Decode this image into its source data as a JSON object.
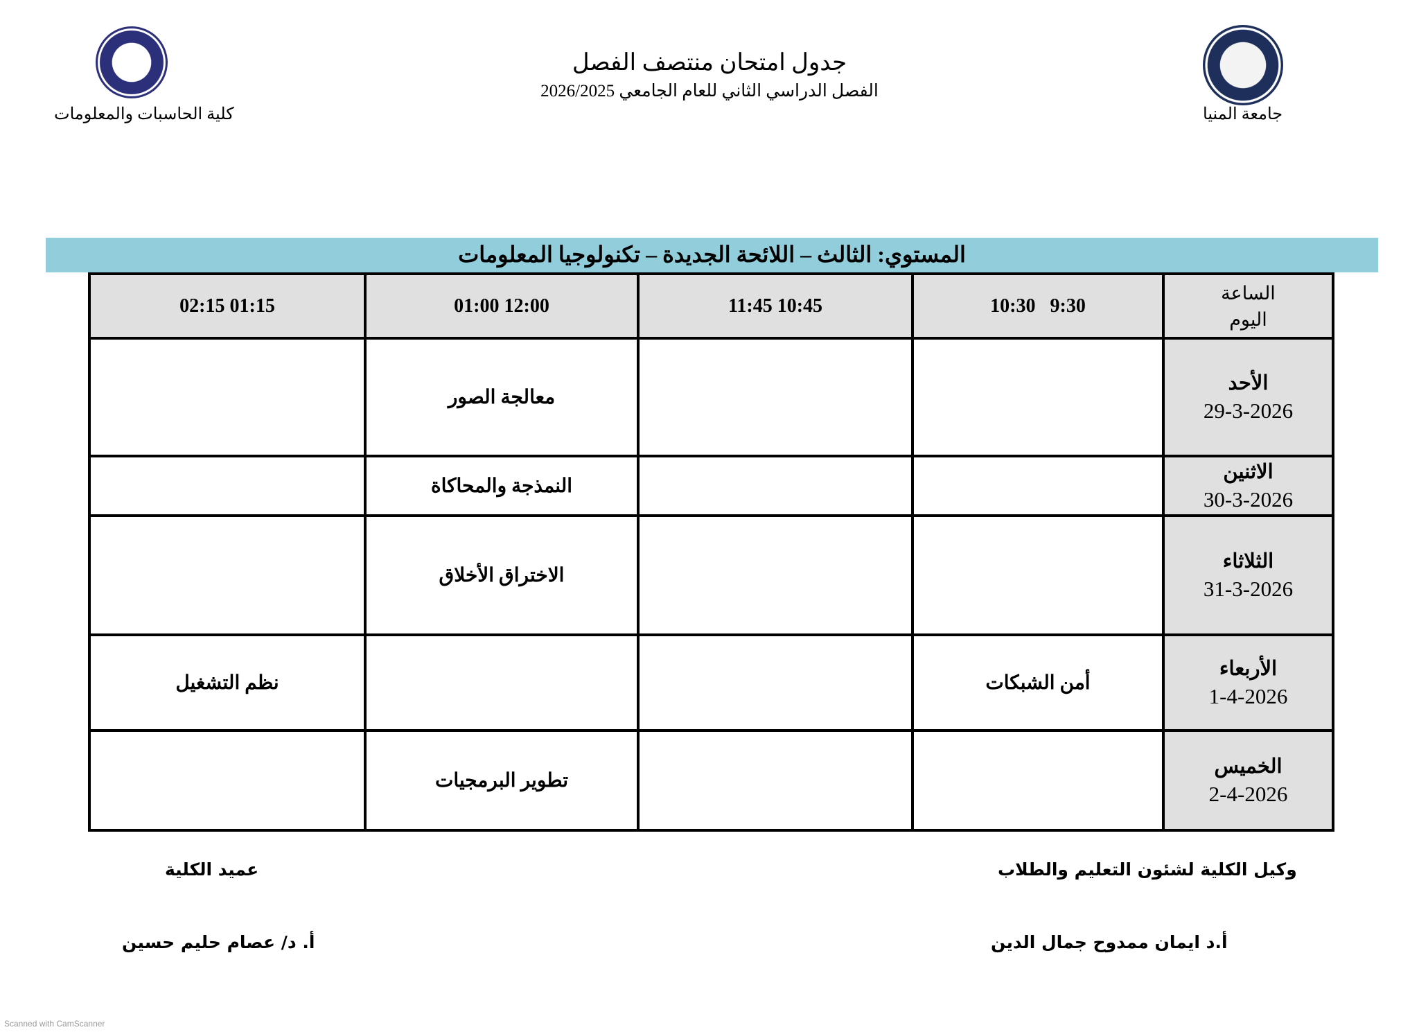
{
  "header": {
    "title": "جدول امتحان منتصف الفصل",
    "subtitle": "الفصل الدراسي الثاني للعام الجامعي 2026/2025",
    "left_institution": "كلية الحاسبات والمعلومات",
    "right_institution": "جامعة المنيا"
  },
  "banner": {
    "text": "المستوي: الثالث – اللائحة الجديدة – تكنولوجيا المعلومات",
    "color": "#92cddc"
  },
  "table": {
    "corner": [
      "الساعة",
      "اليوم"
    ],
    "time_slots": [
      "10:30   9:30",
      "11:45 10:45",
      "01:00 12:00",
      "02:15 01:15"
    ],
    "rows": [
      {
        "day": "الأحد",
        "date": "29-3-2026",
        "cells": [
          "",
          "",
          "معالجة الصور",
          ""
        ]
      },
      {
        "day": "الاثنين",
        "date": "30-3-2026",
        "cells": [
          "",
          "",
          "النمذجة والمحاكاة",
          ""
        ]
      },
      {
        "day": "الثلاثاء",
        "date": "31-3-2026",
        "cells": [
          "",
          "",
          "الاختراق الأخلاق",
          ""
        ]
      },
      {
        "day": "الأربعاء",
        "date": "1-4-2026",
        "cells": [
          "أمن الشبكات",
          "",
          "",
          "نظم التشغيل"
        ]
      },
      {
        "day": "الخميس",
        "date": "2-4-2026",
        "cells": [
          "",
          "",
          "تطوير البرمجيات",
          ""
        ]
      }
    ]
  },
  "signatures": {
    "right_role": "وكيل الكلية لشئون التعليم والطلاب",
    "right_name": "أ.د ايمان ممدوح جمال الدين",
    "left_role": "عميد الكلية",
    "left_name": "أ. د/ عصام حليم حسين"
  },
  "watermark": "Scanned with CamScanner"
}
